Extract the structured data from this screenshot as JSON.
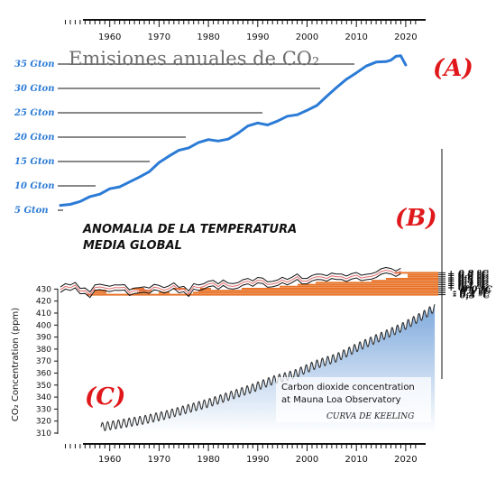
{
  "chart_data": [
    {
      "panel": "A",
      "type": "line",
      "panel_label": "(A)",
      "title": "Emisiones anuales de CO₂",
      "x_range": [
        1950,
        2021
      ],
      "ylim": [
        0,
        38
      ],
      "y_tick_labels": [
        {
          "value": 5,
          "label": "5 Gton"
        },
        {
          "value": 10,
          "label": "10 Gton"
        },
        {
          "value": 15,
          "label": "15 Gton"
        },
        {
          "value": 20,
          "label": "20 Gton"
        },
        {
          "value": 25,
          "label": "25 Gton"
        },
        {
          "value": 30,
          "label": "30 Gton"
        },
        {
          "value": 35,
          "label": "35 Gton"
        }
      ],
      "x": [
        1950,
        1952,
        1954,
        1956,
        1958,
        1960,
        1962,
        1964,
        1966,
        1968,
        1970,
        1972,
        1974,
        1976,
        1978,
        1980,
        1982,
        1984,
        1986,
        1988,
        1990,
        1992,
        1994,
        1996,
        1998,
        2000,
        2002,
        2004,
        2006,
        2008,
        2010,
        2012,
        2014,
        2016,
        2017,
        2018,
        2019,
        2020
      ],
      "values": [
        6.0,
        6.2,
        6.8,
        7.8,
        8.3,
        9.4,
        9.8,
        10.8,
        11.8,
        12.9,
        14.8,
        16.1,
        17.3,
        17.8,
        18.9,
        19.5,
        19.2,
        19.6,
        20.8,
        22.3,
        22.9,
        22.5,
        23.3,
        24.3,
        24.6,
        25.5,
        26.5,
        28.4,
        30.2,
        31.9,
        33.2,
        34.6,
        35.4,
        35.5,
        35.8,
        36.6,
        36.7,
        34.8
      ],
      "color": "#2b7bd6"
    },
    {
      "panel": "B",
      "type": "line",
      "panel_label": "(B)",
      "title": "ANOMALIA DE LA TEMPERATURA MEDIA GLOBAL",
      "ylim": [
        -0.35,
        0.9
      ],
      "y_tick_labels": [
        {
          "value": 0.8,
          "label": "+ 0,8 ºC"
        },
        {
          "value": 0.7,
          "label": "+ 0,7 ºC"
        },
        {
          "value": 0.6,
          "label": "+ 0,6 ºC"
        },
        {
          "value": 0.5,
          "label": "+ 0,5 ºC"
        },
        {
          "value": 0.4,
          "label": "+ 0,4 ºC"
        },
        {
          "value": 0.3,
          "label": "+ 0,3 ºC"
        },
        {
          "value": 0.2,
          "label": "+ 0,2 ºC"
        },
        {
          "value": 0.1,
          "label": "+ 0,1 ºC"
        },
        {
          "value": 0.0,
          "label": "0,0 ºC"
        },
        {
          "value": -0.1,
          "label": "- 0,1 ºC"
        },
        {
          "value": -0.2,
          "label": "- 0,2 ºC"
        },
        {
          "value": -0.3,
          "label": "- 0,3 ºC"
        }
      ],
      "x": [
        1950,
        1951,
        1952,
        1953,
        1954,
        1955,
        1956,
        1957,
        1958,
        1959,
        1960,
        1961,
        1962,
        1963,
        1964,
        1965,
        1966,
        1967,
        1968,
        1969,
        1970,
        1971,
        1972,
        1973,
        1974,
        1975,
        1976,
        1977,
        1978,
        1979,
        1980,
        1981,
        1982,
        1983,
        1984,
        1985,
        1986,
        1987,
        1988,
        1989,
        1990,
        1991,
        1992,
        1993,
        1994,
        1995,
        1996,
        1997,
        1998,
        1999,
        2000,
        2001,
        2002,
        2003,
        2004,
        2005,
        2006,
        2007,
        2008,
        2009,
        2010,
        2011,
        2012,
        2013,
        2014,
        2015,
        2016,
        2017,
        2018,
        2019
      ],
      "values": [
        -0.05,
        0.12,
        0.05,
        0.18,
        -0.12,
        -0.1,
        -0.3,
        0.06,
        0.09,
        0.04,
        -0.01,
        0.06,
        0.05,
        0.07,
        -0.2,
        -0.1,
        -0.08,
        -0.04,
        -0.1,
        0.08,
        0.03,
        -0.08,
        0.01,
        0.16,
        -0.07,
        -0.02,
        -0.25,
        0.12,
        0.05,
        0.11,
        0.24,
        0.28,
        0.11,
        0.3,
        0.15,
        0.12,
        0.17,
        0.32,
        0.38,
        0.26,
        0.43,
        0.4,
        0.21,
        0.23,
        0.3,
        0.44,
        0.33,
        0.45,
        0.61,
        0.38,
        0.38,
        0.53,
        0.6,
        0.59,
        0.52,
        0.65,
        0.6,
        0.6,
        0.5,
        0.62,
        0.68,
        0.54,
        0.59,
        0.62,
        0.7,
        0.87,
        0.93,
        0.88,
        0.76,
        0.89
      ],
      "color": "#e06a6a"
    },
    {
      "panel": "C",
      "type": "line",
      "panel_label": "(C)",
      "title": "Carbon dioxide concentration at Mauna Loa Observatory",
      "subtitle": "CURVA DE KEELING",
      "ylabel": "CO₂ Concentration (ppm)",
      "ylim": [
        310,
        430
      ],
      "y_ticks": [
        "310",
        "320",
        "330",
        "340",
        "350",
        "360",
        "370",
        "380",
        "390",
        "400",
        "410",
        "420",
        "430"
      ],
      "x": [
        1958,
        1962,
        1966,
        1970,
        1974,
        1978,
        1982,
        1986,
        1990,
        1994,
        1998,
        2002,
        2006,
        2010,
        2014,
        2018,
        2020
      ],
      "values": [
        315,
        318,
        321,
        325,
        330,
        335,
        341,
        347,
        354,
        359,
        367,
        373,
        382,
        390,
        398,
        408,
        414
      ],
      "seasonal_amplitude_ppm": 3.5
    }
  ],
  "x_axis": {
    "range": [
      1950,
      2023
    ],
    "tick_labels": [
      "1960",
      "1970",
      "1980",
      "1990",
      "2000",
      "2010",
      "2020"
    ]
  }
}
